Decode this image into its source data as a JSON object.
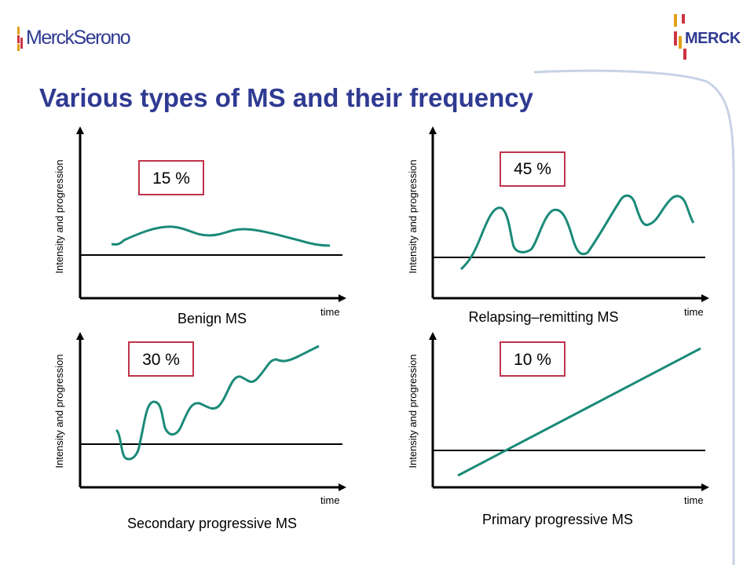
{
  "header": {
    "title": "Various types of MS and their frequency",
    "logo_left": "MerckSerono",
    "logo_right": "MERCK"
  },
  "colors": {
    "title": "#2f3a92",
    "curve": "#1a8a78",
    "box_border": "#c0334a"
  },
  "panels": [
    {
      "name": "Benign MS",
      "percent": "15 %",
      "y_label": "Intensity and progression",
      "x_label": "time"
    },
    {
      "name": "Relapsing–remitting MS",
      "percent": "45 %",
      "y_label": "Intensity and progression",
      "x_label": "time"
    },
    {
      "name": "Secondary progressive MS",
      "percent": "30 %",
      "y_label": "Intensity and progression",
      "x_label": "time"
    },
    {
      "name": "Primary progressive MS",
      "percent": "10 %",
      "y_label": "Intensity and progression",
      "x_label": "time"
    }
  ]
}
